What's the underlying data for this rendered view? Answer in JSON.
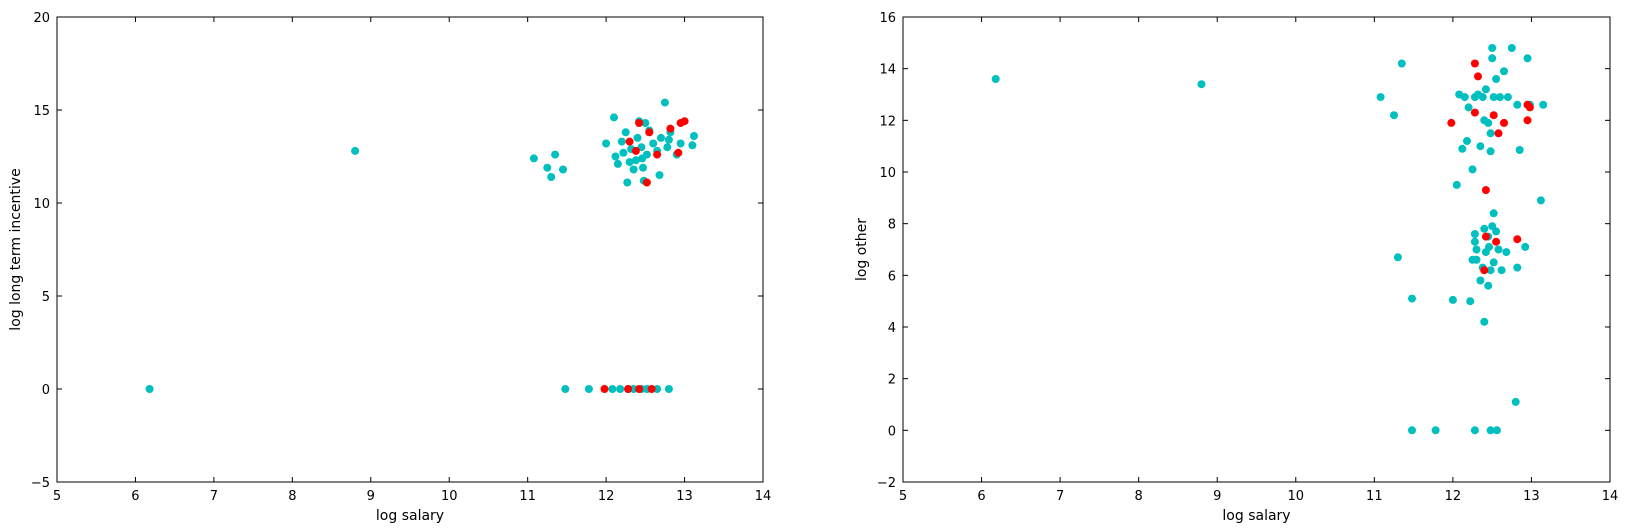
{
  "colors": {
    "cyan": "#00bfbf",
    "red": "#ff0000",
    "axis": "#000000",
    "background": "#ffffff"
  },
  "chart_data": [
    {
      "type": "scatter",
      "xlabel": "log salary",
      "ylabel": "log long term incentive",
      "xlim": [
        5,
        14
      ],
      "ylim": [
        -5,
        20
      ],
      "xticks": [
        5,
        6,
        7,
        8,
        9,
        10,
        11,
        12,
        13,
        14
      ],
      "yticks": [
        -5,
        0,
        5,
        10,
        15,
        20
      ],
      "grid": false,
      "series": [
        {
          "color": "#00bfbf",
          "points": [
            [
              6.18,
              0
            ],
            [
              8.8,
              12.8
            ],
            [
              11.08,
              12.4
            ],
            [
              11.25,
              11.9
            ],
            [
              11.3,
              11.4
            ],
            [
              11.35,
              12.6
            ],
            [
              11.45,
              11.8
            ],
            [
              12.0,
              13.2
            ],
            [
              12.1,
              14.6
            ],
            [
              12.12,
              12.5
            ],
            [
              12.15,
              12.1
            ],
            [
              12.2,
              13.3
            ],
            [
              12.22,
              12.7
            ],
            [
              12.25,
              13.8
            ],
            [
              12.27,
              11.1
            ],
            [
              12.3,
              12.2
            ],
            [
              12.32,
              12.9
            ],
            [
              12.35,
              11.8
            ],
            [
              12.38,
              12.3
            ],
            [
              12.4,
              13.5
            ],
            [
              12.42,
              14.4
            ],
            [
              12.45,
              13.0
            ],
            [
              12.46,
              12.4
            ],
            [
              12.47,
              11.9
            ],
            [
              12.48,
              11.2
            ],
            [
              12.5,
              14.3
            ],
            [
              12.52,
              12.6
            ],
            [
              12.55,
              13.9
            ],
            [
              12.6,
              13.2
            ],
            [
              12.65,
              12.8
            ],
            [
              12.68,
              11.5
            ],
            [
              12.7,
              13.5
            ],
            [
              12.75,
              15.4
            ],
            [
              12.8,
              13.4
            ],
            [
              12.82,
              13.8
            ],
            [
              12.9,
              12.6
            ],
            [
              12.95,
              13.2
            ],
            [
              13.1,
              13.1
            ],
            [
              13.12,
              13.6
            ],
            [
              12.78,
              13.0
            ],
            [
              11.48,
              0
            ],
            [
              11.78,
              0
            ],
            [
              12.08,
              0
            ],
            [
              12.18,
              0
            ],
            [
              12.28,
              0
            ],
            [
              12.35,
              0
            ],
            [
              12.45,
              0
            ],
            [
              12.52,
              0
            ],
            [
              12.65,
              0
            ],
            [
              12.8,
              0
            ]
          ]
        },
        {
          "color": "#ff0000",
          "points": [
            [
              12.3,
              13.3
            ],
            [
              12.38,
              12.8
            ],
            [
              12.42,
              14.3
            ],
            [
              12.55,
              13.8
            ],
            [
              12.52,
              11.1
            ],
            [
              12.65,
              12.6
            ],
            [
              12.82,
              14.0
            ],
            [
              12.92,
              12.7
            ],
            [
              12.95,
              14.3
            ],
            [
              13.0,
              14.4
            ],
            [
              11.98,
              0
            ],
            [
              12.28,
              0
            ],
            [
              12.42,
              0
            ],
            [
              12.58,
              0
            ]
          ]
        }
      ]
    },
    {
      "type": "scatter",
      "xlabel": "log salary",
      "ylabel": "log other",
      "xlim": [
        5,
        14
      ],
      "ylim": [
        -2,
        16
      ],
      "xticks": [
        5,
        6,
        7,
        8,
        9,
        10,
        11,
        12,
        13,
        14
      ],
      "yticks": [
        -2,
        0,
        2,
        4,
        6,
        8,
        10,
        12,
        14,
        16
      ],
      "grid": false,
      "series": [
        {
          "color": "#00bfbf",
          "points": [
            [
              6.18,
              13.6
            ],
            [
              8.8,
              13.4
            ],
            [
              11.08,
              12.9
            ],
            [
              11.25,
              12.2
            ],
            [
              11.35,
              14.2
            ],
            [
              11.3,
              6.7
            ],
            [
              11.48,
              5.1
            ],
            [
              11.48,
              0
            ],
            [
              11.78,
              0
            ],
            [
              12.0,
              5.05
            ],
            [
              12.05,
              9.5
            ],
            [
              12.08,
              13.0
            ],
            [
              12.12,
              10.9
            ],
            [
              12.15,
              12.9
            ],
            [
              12.18,
              11.2
            ],
            [
              12.2,
              12.5
            ],
            [
              12.22,
              5.0
            ],
            [
              12.25,
              10.1
            ],
            [
              12.28,
              12.9
            ],
            [
              12.3,
              7.0
            ],
            [
              12.32,
              13.0
            ],
            [
              12.35,
              11.0
            ],
            [
              12.38,
              12.9
            ],
            [
              12.4,
              12.0
            ],
            [
              12.42,
              13.2
            ],
            [
              12.45,
              11.9
            ],
            [
              12.48,
              11.5
            ],
            [
              12.5,
              14.4
            ],
            [
              12.5,
              14.8
            ],
            [
              12.52,
              12.9
            ],
            [
              12.55,
              13.6
            ],
            [
              12.6,
              12.9
            ],
            [
              12.65,
              13.9
            ],
            [
              12.7,
              12.9
            ],
            [
              12.75,
              14.8
            ],
            [
              12.82,
              12.6
            ],
            [
              12.85,
              10.85
            ],
            [
              12.95,
              14.4
            ],
            [
              13.15,
              12.6
            ],
            [
              13.12,
              8.9
            ],
            [
              12.98,
              12.6
            ],
            [
              12.48,
              10.8
            ],
            [
              12.28,
              7.6
            ],
            [
              12.3,
              6.6
            ],
            [
              12.35,
              5.8
            ],
            [
              12.38,
              6.3
            ],
            [
              12.4,
              7.8
            ],
            [
              12.4,
              4.2
            ],
            [
              12.42,
              6.9
            ],
            [
              12.45,
              5.6
            ],
            [
              12.46,
              7.1
            ],
            [
              12.48,
              6.2
            ],
            [
              12.5,
              7.9
            ],
            [
              12.52,
              8.4
            ],
            [
              12.52,
              6.5
            ],
            [
              12.55,
              7.7
            ],
            [
              12.58,
              7.0
            ],
            [
              12.62,
              6.2
            ],
            [
              12.68,
              6.9
            ],
            [
              12.82,
              6.3
            ],
            [
              12.92,
              7.1
            ],
            [
              12.8,
              1.1
            ],
            [
              12.25,
              6.6
            ],
            [
              12.28,
              7.3
            ],
            [
              12.45,
              7.5
            ],
            [
              12.28,
              0
            ],
            [
              12.48,
              0
            ],
            [
              12.56,
              0
            ]
          ]
        },
        {
          "color": "#ff0000",
          "points": [
            [
              12.28,
              14.2
            ],
            [
              12.32,
              13.7
            ],
            [
              11.98,
              11.9
            ],
            [
              12.28,
              12.3
            ],
            [
              12.52,
              12.2
            ],
            [
              12.58,
              11.5
            ],
            [
              12.65,
              11.9
            ],
            [
              12.95,
              12.0
            ],
            [
              12.95,
              12.6
            ],
            [
              12.98,
              12.5
            ],
            [
              12.42,
              9.3
            ],
            [
              12.42,
              7.5
            ],
            [
              12.55,
              7.3
            ],
            [
              12.82,
              7.4
            ],
            [
              12.4,
              6.2
            ]
          ]
        }
      ]
    }
  ]
}
